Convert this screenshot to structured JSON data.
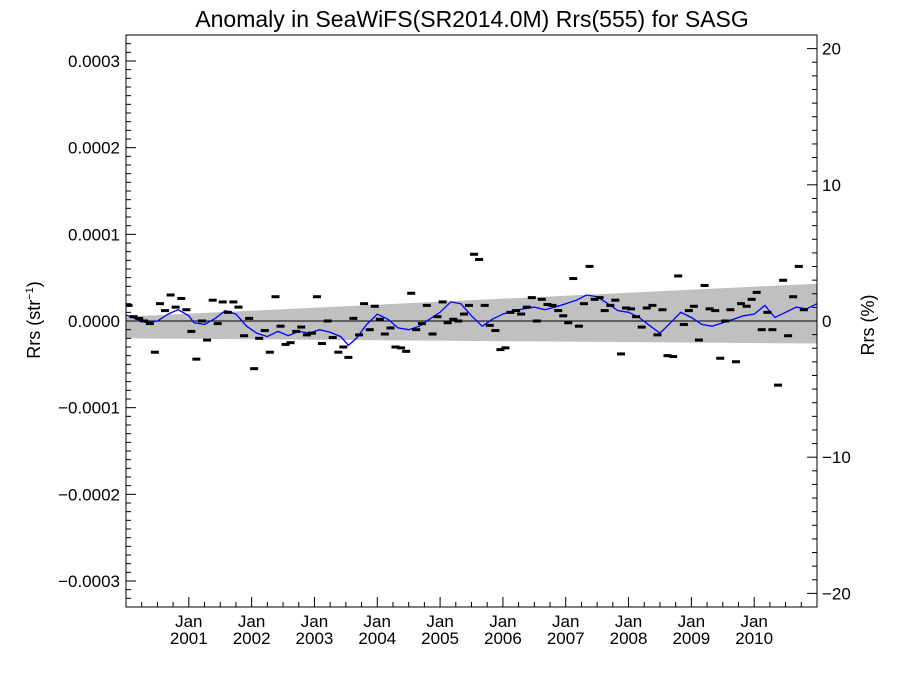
{
  "chart_data": {
    "type": "scatter",
    "title": "Anomaly in SeaWiFS(SR2014.0M) Rrs(555) for SASG",
    "ylabel_left": "Rrs (str",
    "ylabel_left_sup": "−1",
    "ylabel_left_end": ")",
    "ylabel_right": "Rrs (%)",
    "ylim": [
      -0.00033,
      0.00033
    ],
    "ylim_right": [
      -21.0,
      21.0
    ],
    "xlim": [
      2000.0,
      2011.0
    ],
    "y_ticks_left": [
      {
        "value": 0.0003,
        "label": "0.0003"
      },
      {
        "value": 0.0002,
        "label": "0.0002"
      },
      {
        "value": 0.0001,
        "label": "0.0001"
      },
      {
        "value": 0.0,
        "label": "0.0000"
      },
      {
        "value": -0.0001,
        "label": "−0.0001"
      },
      {
        "value": -0.0002,
        "label": "−0.0002"
      },
      {
        "value": -0.0003,
        "label": "−0.0003"
      }
    ],
    "y_ticks_right": [
      {
        "value": 20,
        "label": "20"
      },
      {
        "value": 10,
        "label": "10"
      },
      {
        "value": 0,
        "label": "0"
      },
      {
        "value": -10,
        "label": "−10"
      },
      {
        "value": -20,
        "label": "−20"
      }
    ],
    "x_ticks": [
      {
        "value": 2001.0,
        "month": "Jan",
        "year": "2001"
      },
      {
        "value": 2002.0,
        "month": "Jan",
        "year": "2002"
      },
      {
        "value": 2003.0,
        "month": "Jan",
        "year": "2003"
      },
      {
        "value": 2004.0,
        "month": "Jan",
        "year": "2004"
      },
      {
        "value": 2005.0,
        "month": "Jan",
        "year": "2005"
      },
      {
        "value": 2006.0,
        "month": "Jan",
        "year": "2006"
      },
      {
        "value": 2007.0,
        "month": "Jan",
        "year": "2007"
      },
      {
        "value": 2008.0,
        "month": "Jan",
        "year": "2008"
      },
      {
        "value": 2009.0,
        "month": "Jan",
        "year": "2009"
      },
      {
        "value": 2010.0,
        "month": "Jan",
        "year": "2010"
      }
    ],
    "band": {
      "color": "#c0c0c0",
      "start": {
        "x": 2000.0,
        "upper": 5e-06,
        "lower": -2e-05
      },
      "end": {
        "x": 2011.0,
        "upper": 4.3e-05,
        "lower": -2.6e-05
      }
    },
    "zero_line_color": "#000000",
    "smoothed_color": "#0000ff",
    "marker_color": "#000000",
    "points": [
      [
        2000.04,
        1.8e-05
      ],
      [
        2000.12,
        5e-06
      ],
      [
        2000.21,
        3e-06
      ],
      [
        2000.29,
        0.0
      ],
      [
        2000.38,
        -3e-06
      ],
      [
        2000.46,
        -3.6e-05
      ],
      [
        2000.54,
        2e-05
      ],
      [
        2000.62,
        1.2e-05
      ],
      [
        2000.71,
        3e-05
      ],
      [
        2000.79,
        1.6e-05
      ],
      [
        2000.88,
        2.6e-05
      ],
      [
        2000.96,
        1.3e-05
      ],
      [
        2001.04,
        -1.2e-05
      ],
      [
        2001.12,
        -4.4e-05
      ],
      [
        2001.21,
        0.0
      ],
      [
        2001.29,
        -2.2e-05
      ],
      [
        2001.38,
        2.4e-05
      ],
      [
        2001.46,
        -3e-06
      ],
      [
        2001.54,
        2.2e-05
      ],
      [
        2001.62,
        1e-05
      ],
      [
        2001.71,
        2.2e-05
      ],
      [
        2001.79,
        1.6e-05
      ],
      [
        2001.88,
        -1.7e-05
      ],
      [
        2001.96,
        3e-06
      ],
      [
        2002.04,
        -5.5e-05
      ],
      [
        2002.12,
        -2e-05
      ],
      [
        2002.21,
        -1.1e-05
      ],
      [
        2002.29,
        -3.6e-05
      ],
      [
        2002.38,
        2.8e-05
      ],
      [
        2002.46,
        -6e-06
      ],
      [
        2002.54,
        -2.7e-05
      ],
      [
        2002.62,
        -2.5e-05
      ],
      [
        2002.71,
        -1.2e-05
      ],
      [
        2002.79,
        -7e-06
      ],
      [
        2002.88,
        -1.6e-05
      ],
      [
        2002.96,
        -1.4e-05
      ],
      [
        2003.04,
        2.8e-05
      ],
      [
        2003.12,
        -2.6e-05
      ],
      [
        2003.21,
        0.0
      ],
      [
        2003.29,
        -1.9e-05
      ],
      [
        2003.38,
        -3.6e-05
      ],
      [
        2003.46,
        -3e-05
      ],
      [
        2003.54,
        -4.2e-05
      ],
      [
        2003.62,
        3e-06
      ],
      [
        2003.71,
        -1.6e-05
      ],
      [
        2003.79,
        2e-05
      ],
      [
        2003.88,
        -1e-05
      ],
      [
        2003.96,
        1.7e-05
      ],
      [
        2004.04,
        2e-06
      ],
      [
        2004.12,
        -1.5e-05
      ],
      [
        2004.21,
        -8e-06
      ],
      [
        2004.29,
        -3e-05
      ],
      [
        2004.38,
        -3.1e-05
      ],
      [
        2004.46,
        -3.5e-05
      ],
      [
        2004.54,
        3.2e-05
      ],
      [
        2004.62,
        -1e-05
      ],
      [
        2004.71,
        -3e-06
      ],
      [
        2004.79,
        1.8e-05
      ],
      [
        2004.88,
        -1.5e-05
      ],
      [
        2004.96,
        5e-06
      ],
      [
        2005.04,
        2.2e-05
      ],
      [
        2005.12,
        -2e-06
      ],
      [
        2005.21,
        2e-06
      ],
      [
        2005.29,
        0.0
      ],
      [
        2005.38,
        8e-06
      ],
      [
        2005.46,
        1.8e-05
      ],
      [
        2005.54,
        7.7e-05
      ],
      [
        2005.62,
        7.1e-05
      ],
      [
        2005.71,
        1.8e-05
      ],
      [
        2005.79,
        -5e-06
      ],
      [
        2005.88,
        -1.1e-05
      ],
      [
        2005.96,
        -3.3e-05
      ],
      [
        2006.04,
        -3.1e-05
      ],
      [
        2006.12,
        1e-05
      ],
      [
        2006.21,
        1.2e-05
      ],
      [
        2006.29,
        8e-06
      ],
      [
        2006.38,
        1.6e-05
      ],
      [
        2006.46,
        2.7e-05
      ],
      [
        2006.54,
        0.0
      ],
      [
        2006.62,
        2.5e-05
      ],
      [
        2006.71,
        1.9e-05
      ],
      [
        2006.79,
        1.8e-05
      ],
      [
        2006.88,
        1.2e-05
      ],
      [
        2006.96,
        6e-06
      ],
      [
        2007.04,
        -2e-06
      ],
      [
        2007.12,
        4.9e-05
      ],
      [
        2007.21,
        -6e-06
      ],
      [
        2007.29,
        2e-05
      ],
      [
        2007.38,
        6.3e-05
      ],
      [
        2007.46,
        2.5e-05
      ],
      [
        2007.54,
        2.7e-05
      ],
      [
        2007.62,
        1.2e-05
      ],
      [
        2007.71,
        1.8e-05
      ],
      [
        2007.79,
        2.4e-05
      ],
      [
        2007.88,
        -3.8e-05
      ],
      [
        2007.96,
        1.5e-05
      ],
      [
        2008.04,
        1.4e-05
      ],
      [
        2008.12,
        5e-06
      ],
      [
        2008.21,
        -7e-06
      ],
      [
        2008.29,
        1.5e-05
      ],
      [
        2008.38,
        1.8e-05
      ],
      [
        2008.46,
        -1.6e-05
      ],
      [
        2008.54,
        1.3e-05
      ],
      [
        2008.62,
        -4e-05
      ],
      [
        2008.71,
        -4.1e-05
      ],
      [
        2008.79,
        5.2e-05
      ],
      [
        2008.88,
        -4e-06
      ],
      [
        2008.96,
        1.2e-05
      ],
      [
        2009.04,
        1.7e-05
      ],
      [
        2009.12,
        -2.2e-05
      ],
      [
        2009.21,
        4.1e-05
      ],
      [
        2009.29,
        1.4e-05
      ],
      [
        2009.38,
        1.2e-05
      ],
      [
        2009.46,
        -4.3e-05
      ],
      [
        2009.54,
        0.0
      ],
      [
        2009.62,
        1.3e-05
      ],
      [
        2009.71,
        -4.7e-05
      ],
      [
        2009.79,
        2e-05
      ],
      [
        2009.88,
        1.7e-05
      ],
      [
        2009.96,
        2.5e-05
      ],
      [
        2010.04,
        3.3e-05
      ],
      [
        2010.12,
        -1e-05
      ],
      [
        2010.21,
        1e-05
      ],
      [
        2010.29,
        -1e-05
      ],
      [
        2010.38,
        -7.4e-05
      ],
      [
        2010.46,
        4.7e-05
      ],
      [
        2010.54,
        -1.7e-05
      ],
      [
        2010.62,
        2.8e-05
      ],
      [
        2010.71,
        6.3e-05
      ],
      [
        2010.79,
        1.3e-05
      ]
    ],
    "smoothed": [
      [
        2000.0,
        7e-06
      ],
      [
        2000.17,
        2e-06
      ],
      [
        2000.33,
        -2e-06
      ],
      [
        2000.5,
        0.0
      ],
      [
        2000.67,
        8e-06
      ],
      [
        2000.83,
        1.3e-05
      ],
      [
        2001.0,
        6e-06
      ],
      [
        2001.08,
        -2e-06
      ],
      [
        2001.25,
        -4e-06
      ],
      [
        2001.42,
        3e-06
      ],
      [
        2001.58,
        1.2e-05
      ],
      [
        2001.75,
        8e-06
      ],
      [
        2001.92,
        -6e-06
      ],
      [
        2002.08,
        -1.4e-05
      ],
      [
        2002.25,
        -1.8e-05
      ],
      [
        2002.42,
        -1.2e-05
      ],
      [
        2002.58,
        -1.7e-05
      ],
      [
        2002.75,
        -1.2e-05
      ],
      [
        2002.92,
        -1.4e-05
      ],
      [
        2003.08,
        -1e-05
      ],
      [
        2003.25,
        -1.3e-05
      ],
      [
        2003.42,
        -1.8e-05
      ],
      [
        2003.54,
        -2.8e-05
      ],
      [
        2003.67,
        -2e-05
      ],
      [
        2003.83,
        -4e-06
      ],
      [
        2004.0,
        8e-06
      ],
      [
        2004.17,
        2e-06
      ],
      [
        2004.33,
        -8e-06
      ],
      [
        2004.5,
        -1e-05
      ],
      [
        2004.67,
        -6e-06
      ],
      [
        2004.83,
        2e-06
      ],
      [
        2005.0,
        1e-05
      ],
      [
        2005.17,
        2.2e-05
      ],
      [
        2005.33,
        2e-05
      ],
      [
        2005.5,
        6e-06
      ],
      [
        2005.67,
        -6e-06
      ],
      [
        2005.83,
        2e-06
      ],
      [
        2006.0,
        8e-06
      ],
      [
        2006.17,
        1.2e-05
      ],
      [
        2006.33,
        1.4e-05
      ],
      [
        2006.5,
        1.6e-05
      ],
      [
        2006.67,
        1.3e-05
      ],
      [
        2006.83,
        1.6e-05
      ],
      [
        2007.0,
        2e-05
      ],
      [
        2007.17,
        2.4e-05
      ],
      [
        2007.33,
        3e-05
      ],
      [
        2007.5,
        2.8e-05
      ],
      [
        2007.67,
        2e-05
      ],
      [
        2007.83,
        1.2e-05
      ],
      [
        2008.0,
        1e-05
      ],
      [
        2008.17,
        4e-06
      ],
      [
        2008.33,
        -5e-06
      ],
      [
        2008.5,
        -1.4e-05
      ],
      [
        2008.67,
        -2e-06
      ],
      [
        2008.83,
        1e-05
      ],
      [
        2009.0,
        4e-06
      ],
      [
        2009.17,
        -4e-06
      ],
      [
        2009.33,
        -6e-06
      ],
      [
        2009.5,
        -2e-06
      ],
      [
        2009.67,
        2e-06
      ],
      [
        2009.83,
        6e-06
      ],
      [
        2010.0,
        8e-06
      ],
      [
        2010.17,
        1.8e-05
      ],
      [
        2010.33,
        4e-06
      ],
      [
        2010.5,
        1e-05
      ],
      [
        2010.67,
        1.6e-05
      ],
      [
        2010.83,
        1.4e-05
      ],
      [
        2011.0,
        2e-05
      ]
    ]
  }
}
